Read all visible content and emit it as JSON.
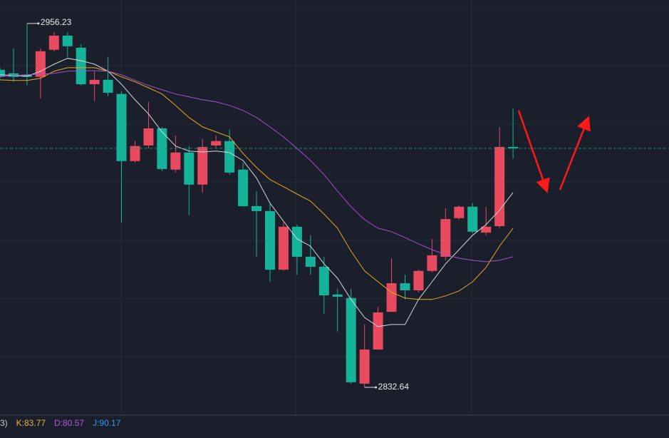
{
  "chart_data": {
    "type": "candlestick",
    "ylim": [
      2823.2,
      2964.2
    ],
    "up_color": "#e84a5f",
    "down_color": "#16b39b",
    "candles": [
      {
        "open": 2940.5,
        "high": 2941.2,
        "low": 2937.6,
        "close": 2938.3
      },
      {
        "open": 2939.3,
        "high": 2947.8,
        "low": 2936.4,
        "close": 2938.1
      },
      {
        "open": 2938.8,
        "high": 2956.23,
        "low": 2935.2,
        "close": 2938.1
      },
      {
        "open": 2938.1,
        "high": 2947.8,
        "low": 2930.8,
        "close": 2946.8
      },
      {
        "open": 2947.3,
        "high": 2953.3,
        "low": 2946.8,
        "close": 2952.1
      },
      {
        "open": 2952.1,
        "high": 2953.3,
        "low": 2944.9,
        "close": 2948.5
      },
      {
        "open": 2948.0,
        "high": 2949.2,
        "low": 2935.2,
        "close": 2935.6
      },
      {
        "open": 2935.6,
        "high": 2940.0,
        "low": 2929.8,
        "close": 2937.1
      },
      {
        "open": 2937.1,
        "high": 2944.9,
        "low": 2931.5,
        "close": 2932.7
      },
      {
        "open": 2932.3,
        "high": 2933.2,
        "low": 2888.6,
        "close": 2909.5
      },
      {
        "open": 2909.5,
        "high": 2916.3,
        "low": 2909.0,
        "close": 2914.6
      },
      {
        "open": 2914.8,
        "high": 2929.6,
        "low": 2913.8,
        "close": 2920.6
      },
      {
        "open": 2920.6,
        "high": 2921.1,
        "low": 2906.1,
        "close": 2906.8
      },
      {
        "open": 2906.6,
        "high": 2918.2,
        "low": 2905.6,
        "close": 2912.4
      },
      {
        "open": 2912.4,
        "high": 2914.6,
        "low": 2891.1,
        "close": 2901.5
      },
      {
        "open": 2901.5,
        "high": 2917.0,
        "low": 2898.8,
        "close": 2914.3
      },
      {
        "open": 2914.8,
        "high": 2918.2,
        "low": 2914.1,
        "close": 2916.3
      },
      {
        "open": 2916.3,
        "high": 2920.1,
        "low": 2904.9,
        "close": 2905.6
      },
      {
        "open": 2906.6,
        "high": 2909.0,
        "low": 2894.0,
        "close": 2894.2
      },
      {
        "open": 2894.2,
        "high": 2899.3,
        "low": 2877.0,
        "close": 2892.5
      },
      {
        "open": 2892.5,
        "high": 2895.2,
        "low": 2868.5,
        "close": 2872.6
      },
      {
        "open": 2872.6,
        "high": 2888.6,
        "low": 2872.2,
        "close": 2887.2
      },
      {
        "open": 2887.2,
        "high": 2887.9,
        "low": 2870.9,
        "close": 2877.0
      },
      {
        "open": 2877.0,
        "high": 2884.3,
        "low": 2870.9,
        "close": 2873.6
      },
      {
        "open": 2873.6,
        "high": 2877.0,
        "low": 2857.6,
        "close": 2863.9
      },
      {
        "open": 2864.2,
        "high": 2866.1,
        "low": 2851.6,
        "close": 2863.4
      },
      {
        "open": 2863.0,
        "high": 2866.1,
        "low": 2833.9,
        "close": 2834.4
      },
      {
        "open": 2833.9,
        "high": 2854.0,
        "low": 2832.64,
        "close": 2845.5
      },
      {
        "open": 2845.5,
        "high": 2860.0,
        "low": 2845.3,
        "close": 2858.1
      },
      {
        "open": 2858.3,
        "high": 2876.5,
        "low": 2858.2,
        "close": 2868.0
      },
      {
        "open": 2868.0,
        "high": 2870.9,
        "low": 2862.5,
        "close": 2865.6
      },
      {
        "open": 2865.6,
        "high": 2872.6,
        "low": 2864.9,
        "close": 2872.2
      },
      {
        "open": 2872.2,
        "high": 2883.1,
        "low": 2871.7,
        "close": 2877.5
      },
      {
        "open": 2877.0,
        "high": 2893.5,
        "low": 2875.8,
        "close": 2889.8
      },
      {
        "open": 2890.1,
        "high": 2894.5,
        "low": 2889.6,
        "close": 2894.0
      },
      {
        "open": 2894.0,
        "high": 2895.2,
        "low": 2885.0,
        "close": 2885.5
      },
      {
        "open": 2885.2,
        "high": 2894.0,
        "low": 2884.3,
        "close": 2887.2
      },
      {
        "open": 2887.4,
        "high": 2921.1,
        "low": 2886.7,
        "close": 2914.3
      },
      {
        "open": 2914.3,
        "high": 2927.4,
        "low": 2910.4,
        "close": 2913.8
      }
    ],
    "moving_averages": [
      {
        "color": "#d8d8d8",
        "values": [
          2938.8,
          2938.6,
          2938.3,
          2940.0,
          2942.4,
          2944.4,
          2943.6,
          2942.4,
          2940.0,
          2935.6,
          2930.3,
          2925.5,
          2919.4,
          2914.6,
          2912.9,
          2912.6,
          2912.9,
          2912.4,
          2909.7,
          2903.7,
          2895.2,
          2889.1,
          2883.1,
          2880.6,
          2874.6,
          2869.7,
          2862.5,
          2856.4,
          2853.3,
          2854.0,
          2854.0,
          2862.5,
          2868.5,
          2874.6,
          2879.4,
          2884.3,
          2887.9,
          2892.8,
          2898.8
        ]
      },
      {
        "color": "#e6a821",
        "values": [
          2937.1,
          2936.9,
          2936.9,
          2937.6,
          2940.0,
          2941.2,
          2941.2,
          2941.2,
          2940.0,
          2938.1,
          2936.4,
          2934.4,
          2932.3,
          2928.4,
          2924.3,
          2921.1,
          2919.4,
          2917.7,
          2912.1,
          2907.3,
          2903.2,
          2900.8,
          2898.3,
          2895.9,
          2891.5,
          2886.7,
          2878.9,
          2872.2,
          2868.5,
          2864.9,
          2863.0,
          2862.5,
          2862.5,
          2863.7,
          2865.4,
          2868.5,
          2873.4,
          2880.6,
          2886.7
        ]
      },
      {
        "color": "#a84fce",
        "values": [
          2938.1,
          2938.6,
          2938.8,
          2939.0,
          2939.3,
          2940.0,
          2940.2,
          2940.2,
          2940.0,
          2938.8,
          2936.9,
          2935.2,
          2933.7,
          2932.3,
          2931.3,
          2930.3,
          2929.6,
          2928.4,
          2926.7,
          2924.3,
          2921.1,
          2917.7,
          2913.8,
          2909.7,
          2904.9,
          2899.3,
          2894.0,
          2889.6,
          2886.7,
          2885.5,
          2883.5,
          2881.4,
          2879.4,
          2877.7,
          2876.5,
          2875.8,
          2875.3,
          2875.8,
          2877.0
        ]
      }
    ],
    "indicator_texts": [
      {
        "text": "3)",
        "color": "#c8c8c8"
      },
      {
        "text": "K:83.77",
        "color": "#e6b53a"
      },
      {
        "text": "D:80.57",
        "color": "#b65ad6"
      },
      {
        "text": "J:90.17",
        "color": "#2f9be8"
      }
    ]
  }
}
